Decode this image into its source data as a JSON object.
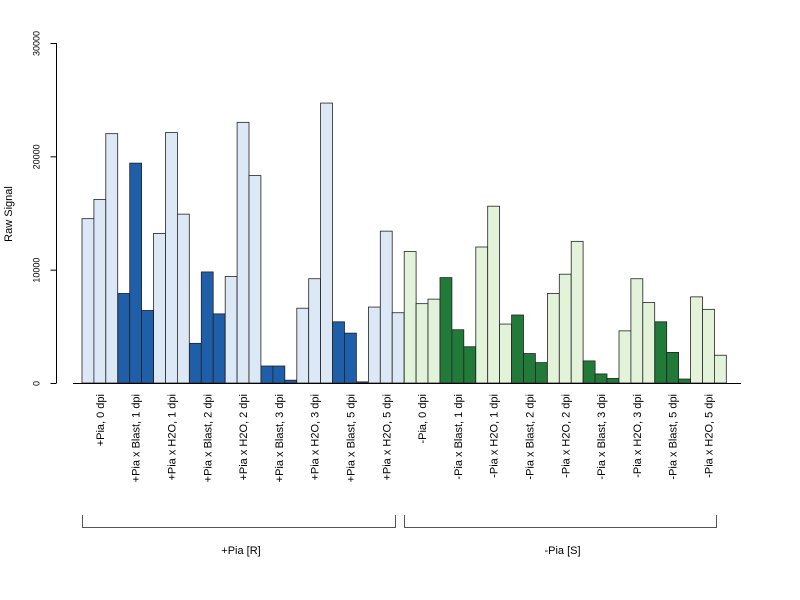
{
  "chart_data": {
    "type": "bar",
    "title": "",
    "xlabel": "",
    "ylabel": "Raw Signal",
    "ylim": [
      0,
      30000
    ],
    "yticks": [
      "0",
      "10000",
      "20000",
      "30000"
    ],
    "grid": false,
    "legend": "none",
    "categories": [
      "+Pia, 0 dpi",
      "+Pia x Blast, 1 dpi",
      "+Pia x H2O, 1 dpi",
      "+Pia x Blast, 2 dpi",
      "+Pia x H2O, 2 dpi",
      "+Pia x Blast, 3 dpi",
      "+Pia x H2O, 3 dpi",
      "+Pia x Blast, 5 dpi",
      "+Pia x H2O, 5 dpi",
      "-Pia, 0 dpi",
      "-Pia x Blast, 1 dpi",
      "-Pia x H2O, 1 dpi",
      "-Pia x Blast, 2 dpi",
      "-Pia x H2O, 2 dpi",
      "-Pia x Blast, 3 dpi",
      "-Pia x H2O, 3 dpi",
      "-Pia x Blast, 5 dpi",
      "-Pia x H2O, 5 dpi"
    ],
    "replicates": [
      [
        14500,
        16200,
        22000
      ],
      [
        7900,
        19400,
        6400
      ],
      [
        13200,
        22100,
        14900
      ],
      [
        3500,
        9800,
        6100
      ],
      [
        9400,
        23000,
        18300
      ],
      [
        1500,
        1500,
        250
      ],
      [
        6600,
        9200,
        24700
      ],
      [
        5400,
        4400,
        100
      ],
      [
        6700,
        13400,
        6200
      ],
      [
        11600,
        7000,
        7400
      ],
      [
        9300,
        4700,
        3200
      ],
      [
        12000,
        15600,
        5200
      ],
      [
        6000,
        2600,
        1800
      ],
      [
        7900,
        9600,
        12500
      ],
      [
        1950,
        800,
        400
      ],
      [
        4600,
        9200,
        7100
      ],
      [
        5400,
        2700,
        350
      ],
      [
        7600,
        6500,
        2450
      ]
    ],
    "colors": {
      "pia_h2o": "#dce8f5",
      "pia_blast": "#1f5ea8",
      "nopia_h2o": "#e2f3da",
      "nopia_blast": "#217a37"
    },
    "bar_colors": [
      "pia_h2o",
      "pia_blast",
      "pia_h2o",
      "pia_blast",
      "pia_h2o",
      "pia_blast",
      "pia_h2o",
      "pia_blast",
      "pia_h2o",
      "nopia_h2o",
      "nopia_blast",
      "nopia_h2o",
      "nopia_blast",
      "nopia_h2o",
      "nopia_blast",
      "nopia_h2o",
      "nopia_blast",
      "nopia_h2o"
    ],
    "groups": [
      {
        "label": "+Pia [R]",
        "from": 0,
        "to": 8
      },
      {
        "label": "-Pia [S]",
        "from": 9,
        "to": 17
      }
    ]
  }
}
